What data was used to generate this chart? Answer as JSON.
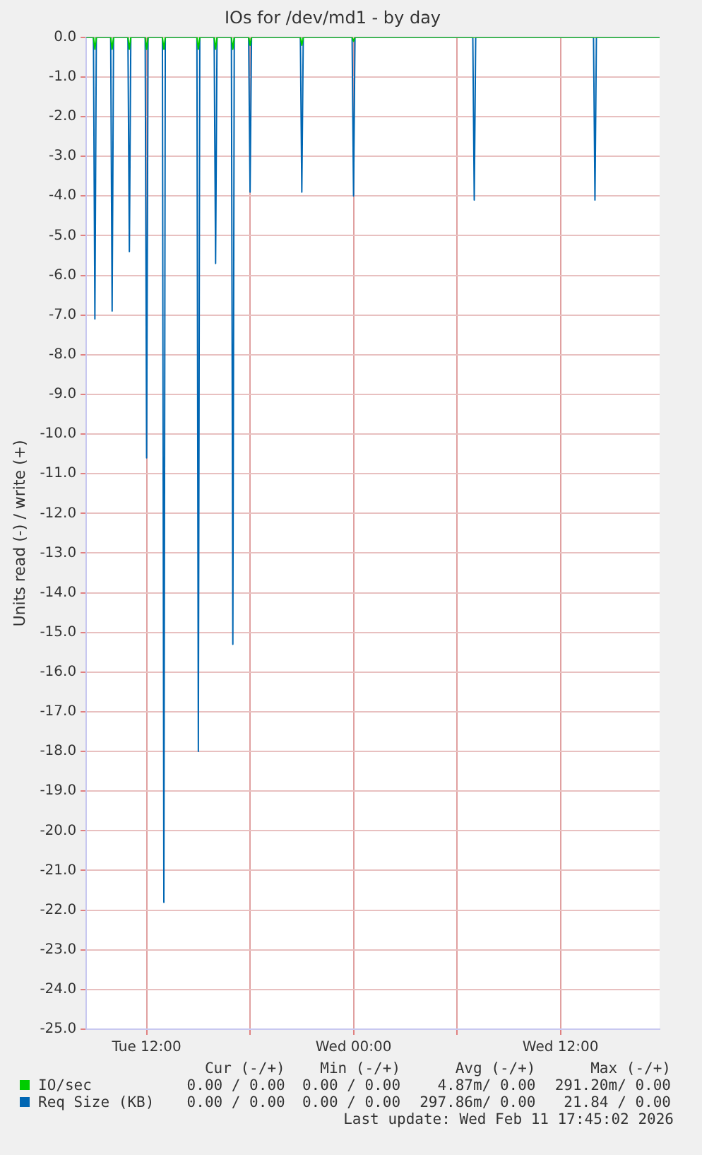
{
  "chart_data": {
    "type": "line",
    "title": "IOs for /dev/md1 - by day",
    "ylabel": "Units read (-) / write (+)",
    "xlim": [
      "2026-02-10T08:30",
      "2026-02-11T17:45"
    ],
    "xticks": [
      {
        "value": "2026-02-10T12:00",
        "label": "Tue 12:00"
      },
      {
        "value": "2026-02-10T18:00",
        "label": null
      },
      {
        "value": "2026-02-11T00:00",
        "label": "Wed 00:00"
      },
      {
        "value": "2026-02-11T06:00",
        "label": null
      },
      {
        "value": "2026-02-11T12:00",
        "label": "Wed 12:00"
      }
    ],
    "ylim": [
      -25,
      0
    ],
    "yticks": [
      {
        "value": 0,
        "label": "0.0"
      },
      {
        "value": -1,
        "label": "-1.0"
      },
      {
        "value": -2,
        "label": "-2.0"
      },
      {
        "value": -3,
        "label": "-3.0"
      },
      {
        "value": -4,
        "label": "-4.0"
      },
      {
        "value": -5,
        "label": "-5.0"
      },
      {
        "value": -6,
        "label": "-6.0"
      },
      {
        "value": -7,
        "label": "-7.0"
      },
      {
        "value": -8,
        "label": "-8.0"
      },
      {
        "value": -9,
        "label": "-9.0"
      },
      {
        "value": -10,
        "label": "-10.0"
      },
      {
        "value": -11,
        "label": "-11.0"
      },
      {
        "value": -12,
        "label": "-12.0"
      },
      {
        "value": -13,
        "label": "-13.0"
      },
      {
        "value": -14,
        "label": "-14.0"
      },
      {
        "value": -15,
        "label": "-15.0"
      },
      {
        "value": -16,
        "label": "-16.0"
      },
      {
        "value": -17,
        "label": "-17.0"
      },
      {
        "value": -18,
        "label": "-18.0"
      },
      {
        "value": -19,
        "label": "-19.0"
      },
      {
        "value": -20,
        "label": "-20.0"
      },
      {
        "value": -21,
        "label": "-21.0"
      },
      {
        "value": -22,
        "label": "-22.0"
      },
      {
        "value": -23,
        "label": "-23.0"
      },
      {
        "value": -24,
        "label": "-24.0"
      },
      {
        "value": -25,
        "label": "-25.0"
      }
    ],
    "grid": true,
    "legend": "bottom",
    "series": [
      {
        "name": "Req Size (KB)",
        "color": "#0066b3",
        "x": [
          "2026-02-10T08:30",
          "2026-02-10T08:55",
          "2026-02-10T09:00",
          "2026-02-10T09:05",
          "2026-02-10T09:55",
          "2026-02-10T10:00",
          "2026-02-10T10:05",
          "2026-02-10T10:55",
          "2026-02-10T11:00",
          "2026-02-10T11:05",
          "2026-02-10T11:55",
          "2026-02-10T12:00",
          "2026-02-10T12:05",
          "2026-02-10T12:55",
          "2026-02-10T13:00",
          "2026-02-10T13:05",
          "2026-02-10T14:55",
          "2026-02-10T15:00",
          "2026-02-10T15:05",
          "2026-02-10T15:55",
          "2026-02-10T16:00",
          "2026-02-10T16:05",
          "2026-02-10T16:55",
          "2026-02-10T17:00",
          "2026-02-10T17:05",
          "2026-02-10T17:55",
          "2026-02-10T18:00",
          "2026-02-10T18:05",
          "2026-02-10T20:55",
          "2026-02-10T21:00",
          "2026-02-10T21:05",
          "2026-02-10T23:55",
          "2026-02-11T00:00",
          "2026-02-11T00:05",
          "2026-02-11T06:55",
          "2026-02-11T07:00",
          "2026-02-11T07:05",
          "2026-02-11T13:55",
          "2026-02-11T14:00",
          "2026-02-11T14:05",
          "2026-02-11T17:45"
        ],
        "values": [
          0,
          0,
          -7.1,
          0,
          0,
          -6.9,
          0,
          0,
          -5.4,
          0,
          0,
          -10.6,
          0,
          0,
          -21.8,
          0,
          0,
          -18.0,
          0,
          0,
          -5.7,
          0,
          0,
          -15.3,
          0,
          0,
          -3.9,
          0,
          0,
          -3.9,
          0,
          0,
          -4.0,
          0,
          0,
          -4.1,
          0,
          0,
          -4.1,
          0,
          0
        ]
      },
      {
        "name": "IO/sec",
        "color": "#00cc00",
        "x": [
          "2026-02-10T08:30",
          "2026-02-10T08:55",
          "2026-02-10T09:00",
          "2026-02-10T09:05",
          "2026-02-10T09:55",
          "2026-02-10T10:00",
          "2026-02-10T10:05",
          "2026-02-10T10:55",
          "2026-02-10T11:00",
          "2026-02-10T11:05",
          "2026-02-10T11:55",
          "2026-02-10T12:00",
          "2026-02-10T12:05",
          "2026-02-10T12:55",
          "2026-02-10T13:00",
          "2026-02-10T13:05",
          "2026-02-10T14:55",
          "2026-02-10T15:00",
          "2026-02-10T15:05",
          "2026-02-10T15:55",
          "2026-02-10T16:00",
          "2026-02-10T16:05",
          "2026-02-10T16:55",
          "2026-02-10T17:00",
          "2026-02-10T17:05",
          "2026-02-10T17:55",
          "2026-02-10T18:00",
          "2026-02-10T18:05",
          "2026-02-10T20:55",
          "2026-02-10T21:00",
          "2026-02-10T21:05",
          "2026-02-10T23:55",
          "2026-02-11T00:00",
          "2026-02-11T00:05",
          "2026-02-11T17:45"
        ],
        "values": [
          0,
          0,
          -0.3,
          0,
          0,
          -0.3,
          0,
          0,
          -0.3,
          0,
          0,
          -0.3,
          0,
          0,
          -0.3,
          0,
          0,
          -0.3,
          0,
          0,
          -0.3,
          0,
          0,
          -0.3,
          0,
          0,
          -0.2,
          0,
          0,
          -0.2,
          0,
          0,
          -0.1,
          0,
          0
        ]
      }
    ],
    "annotations": [
      "Cur (-/+)",
      "Min (-/+)",
      "Avg (-/+)",
      "Max (-/+)",
      "0.00 / 0.00",
      "0.00 / 0.00",
      "4.87m/ 0.00",
      "291.20m/ 0.00",
      "0.00 / 0.00",
      "0.00 / 0.00",
      "297.86m/ 0.00",
      "21.84 / 0.00",
      "Last update: Wed Feb 11 17:45:02 2026"
    ]
  }
}
